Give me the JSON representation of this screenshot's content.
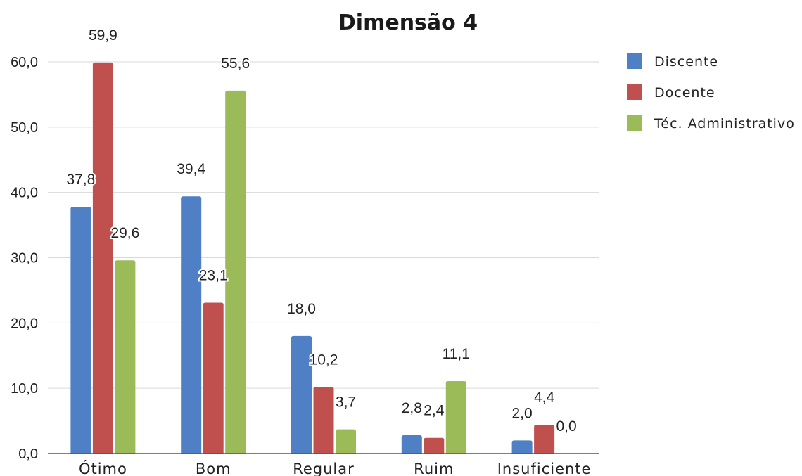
{
  "chart_data": {
    "type": "bar",
    "title": "Dimensão 4",
    "categories": [
      "Ótimo",
      "Bom",
      "Regular",
      "Ruim",
      "Insuficiente"
    ],
    "series": [
      {
        "name": "Discente",
        "color": "#4f7fc4",
        "values": [
          37.8,
          39.4,
          18.0,
          2.8,
          2.0
        ],
        "labels": [
          "37,8",
          "39,4",
          "18,0",
          "2,8",
          "2,0"
        ]
      },
      {
        "name": "Docente",
        "color": "#c0504d",
        "values": [
          59.9,
          23.1,
          10.2,
          2.4,
          4.4
        ],
        "labels": [
          "59,9",
          "23,1",
          "10,2",
          "2,4",
          "4,4"
        ]
      },
      {
        "name": "Téc. Administrativo",
        "color": "#9bbb59",
        "values": [
          29.6,
          55.6,
          3.7,
          11.1,
          0.0
        ],
        "labels": [
          "29,6",
          "55,6",
          "3,7",
          "11,1",
          "0,0"
        ]
      }
    ],
    "ylim": [
      0,
      60
    ],
    "yticks": [
      0,
      10,
      20,
      30,
      40,
      50,
      60
    ],
    "ytick_labels": [
      "0,0",
      "10,0",
      "20,0",
      "30,0",
      "40,0",
      "50,0",
      "60,0"
    ],
    "grid": true,
    "legend_position": "right"
  }
}
